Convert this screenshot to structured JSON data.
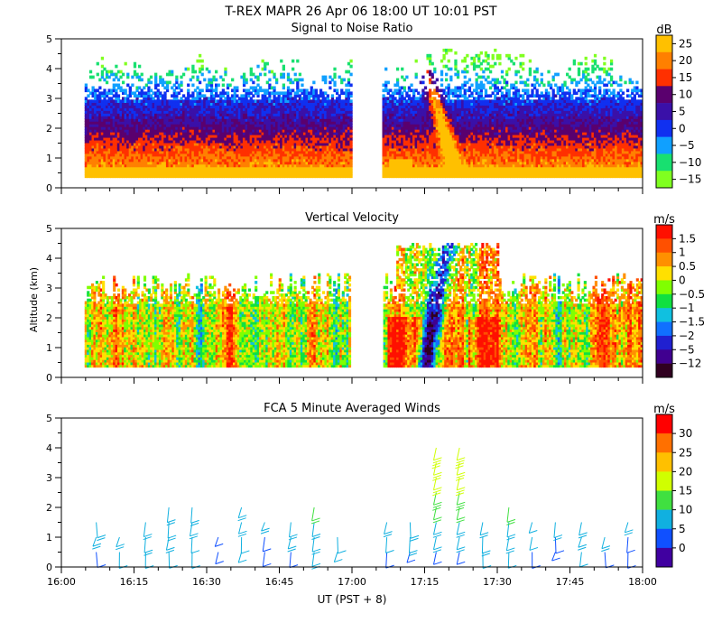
{
  "header": {
    "title": "T-REX  MAPR 26 Apr 06  18:00 UT  10:01  PST"
  },
  "shared_axes": {
    "y_label": "Altitude (km)",
    "x_label": "UT  (PST + 8)",
    "x_ticks": [
      "16:00",
      "16:15",
      "16:30",
      "16:45",
      "17:00",
      "17:15",
      "17:30",
      "17:45",
      "18:00"
    ],
    "x_range_hours": [
      16.0,
      18.0
    ],
    "y_ticks": [
      "0",
      "1",
      "2",
      "3",
      "4",
      "5"
    ],
    "y_range_km": [
      0,
      5
    ],
    "data_gap_hours": [
      17.0,
      17.1
    ]
  },
  "chart_data": [
    {
      "type": "heatmap",
      "title": "Signal to Noise Ratio",
      "xlabel": "",
      "ylabel": "",
      "ylim": [
        0,
        5
      ],
      "colorbar": {
        "unit": "dB",
        "labels": [
          "25",
          "20",
          "15",
          "10",
          "5",
          "0",
          "−5",
          "−10",
          "−15"
        ],
        "colors": [
          "#ffc000",
          "#ff8000",
          "#ff3000",
          "#5a006e",
          "#3a10a8",
          "#1030f0",
          "#10a0ff",
          "#18e070",
          "#80ff20"
        ]
      }
    },
    {
      "type": "heatmap",
      "title": "Vertical Velocity",
      "xlabel": "",
      "ylabel": "Altitude (km)",
      "ylim": [
        0,
        5
      ],
      "colorbar": {
        "unit": "m/s",
        "labels": [
          "1.5",
          "1",
          "0.5",
          "0",
          "−0.5",
          "−1",
          "−1.5",
          "−2",
          "−5",
          "−12"
        ],
        "colors": [
          "#ff1000",
          "#ff5000",
          "#ff9000",
          "#ffe000",
          "#80ff00",
          "#10e040",
          "#10c0e0",
          "#1070ff",
          "#2020d0",
          "#400090",
          "#300020"
        ]
      }
    },
    {
      "type": "scatter",
      "title": "FCA 5 Minute Averaged Winds",
      "xlabel": "UT  (PST + 8)",
      "ylabel": "",
      "ylim": [
        0,
        5
      ],
      "colorbar": {
        "unit": "m/s",
        "labels": [
          "30",
          "25",
          "20",
          "15",
          "10",
          "5",
          "0"
        ],
        "colors": [
          "#ff0000",
          "#ff7000",
          "#ffc000",
          "#d0ff00",
          "#40e040",
          "#10b0e0",
          "#1050ff",
          "#4000a0"
        ]
      },
      "series": [
        {
          "name": "wind barbs",
          "time_hours": [
            16.12,
            16.2,
            16.29,
            16.37,
            16.45,
            16.54,
            16.62,
            16.7,
            16.79,
            16.87,
            16.95,
            17.12,
            17.2,
            17.29,
            17.37,
            17.45,
            17.54,
            17.62,
            17.7,
            17.79,
            17.87,
            17.95
          ],
          "altitudes_km": [
            0.5,
            1.0,
            1.5,
            2.0,
            2.5,
            3.0,
            3.5,
            4.0
          ]
        }
      ]
    }
  ]
}
